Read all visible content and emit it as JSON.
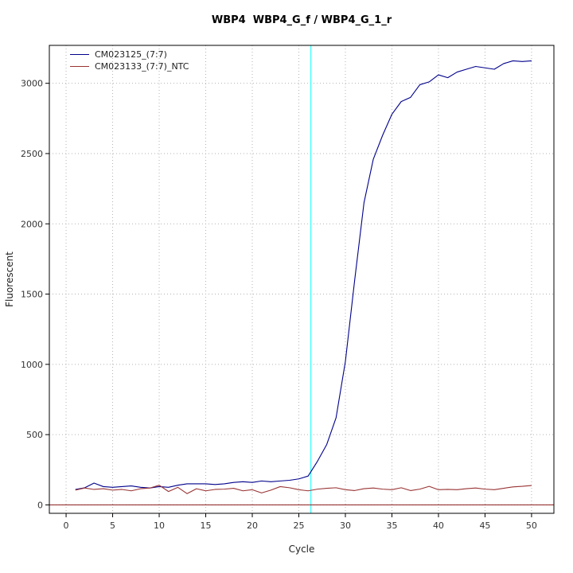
{
  "chart_data": {
    "type": "line",
    "title": "WBP4  WBP4_G_f / WBP4_G_1_r",
    "xlabel": "Cycle",
    "ylabel": "Fluorescent",
    "xlim": [
      -1.8,
      52.4
    ],
    "ylim": [
      -60,
      3270
    ],
    "x_ticks": [
      0,
      5,
      10,
      15,
      20,
      25,
      30,
      35,
      40,
      45,
      50
    ],
    "y_ticks": [
      0,
      500,
      1000,
      1500,
      2000,
      2500,
      3000
    ],
    "grid": true,
    "legend_position": "top-left",
    "x": [
      1,
      2,
      3,
      4,
      5,
      6,
      7,
      8,
      9,
      10,
      11,
      12,
      13,
      14,
      15,
      16,
      17,
      18,
      19,
      20,
      21,
      22,
      23,
      24,
      25,
      26,
      27,
      28,
      29,
      30,
      31,
      32,
      33,
      34,
      35,
      36,
      37,
      38,
      39,
      40,
      41,
      42,
      43,
      44,
      45,
      46,
      47,
      48,
      49,
      50
    ],
    "series": [
      {
        "name": "CM023125_(7:7)",
        "color": "#00008B",
        "values": [
          110,
          122,
          155,
          130,
          125,
          130,
          135,
          125,
          120,
          130,
          125,
          140,
          150,
          150,
          150,
          145,
          150,
          160,
          165,
          160,
          170,
          165,
          170,
          175,
          185,
          205,
          310,
          430,
          620,
          1020,
          1600,
          2150,
          2460,
          2630,
          2780,
          2870,
          2900,
          2990,
          3010,
          3060,
          3040,
          3080,
          3100,
          3120,
          3110,
          3100,
          3140,
          3160,
          3155,
          3160
        ]
      },
      {
        "name": "CM023133_(7:7)_NTC",
        "color": "#993333",
        "values": [
          105,
          120,
          110,
          115,
          105,
          110,
          100,
          115,
          120,
          140,
          95,
          125,
          80,
          115,
          100,
          110,
          112,
          118,
          100,
          108,
          85,
          105,
          130,
          122,
          108,
          100,
          112,
          118,
          122,
          108,
          102,
          115,
          120,
          112,
          108,
          122,
          102,
          112,
          132,
          108,
          110,
          108,
          115,
          120,
          112,
          108,
          118,
          128,
          132,
          138
        ]
      }
    ],
    "threshold_line": {
      "y": 0,
      "color": "#8b1a1a"
    },
    "ct_line": {
      "x": 26.3,
      "color": "#00ffff"
    }
  }
}
